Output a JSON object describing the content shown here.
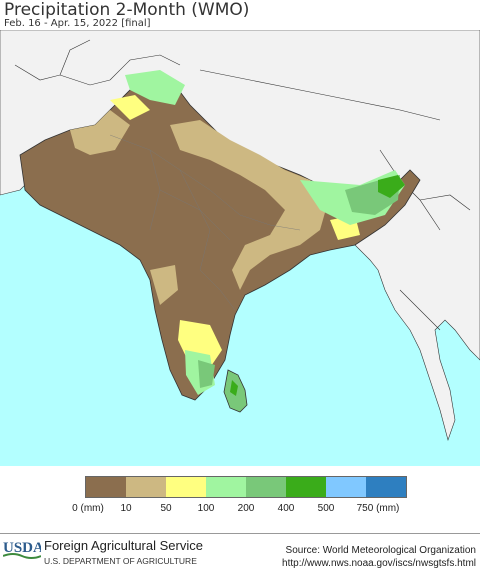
{
  "header": {
    "title": "Precipitation 2-Month (WMO)",
    "subtitle": "Feb. 16 - Apr. 15, 2022 [final]"
  },
  "map": {
    "region": "South Asia",
    "ocean_color": "#b3ffff",
    "outside_land_color": "#f2f2f2",
    "border_color": "#333333"
  },
  "legend": {
    "bins": [
      {
        "label": "0 (mm)",
        "color": "#8b6e4e"
      },
      {
        "label": "10",
        "color": "#cdb882"
      },
      {
        "label": "50",
        "color": "#ffff80"
      },
      {
        "label": "100",
        "color": "#a0f5a0"
      },
      {
        "label": "200",
        "color": "#79c879"
      },
      {
        "label": "400",
        "color": "#3aac1a"
      },
      {
        "label": "500",
        "color": "#80c8ff"
      },
      {
        "label": "750 (mm)",
        "color": "#2e7fc0"
      }
    ],
    "labels": [
      "0 (mm)",
      "10",
      "50",
      "100",
      "200",
      "400",
      "500",
      "750 (mm)"
    ]
  },
  "footer": {
    "logo_text": "USDA",
    "agency": "Foreign Agricultural Service",
    "department": "U.S. DEPARTMENT OF AGRICULTURE",
    "source": "Source: World Meteorological Organization",
    "url": "http://www.nws.noaa.gov/iscs/nwsgtsfs.html"
  }
}
